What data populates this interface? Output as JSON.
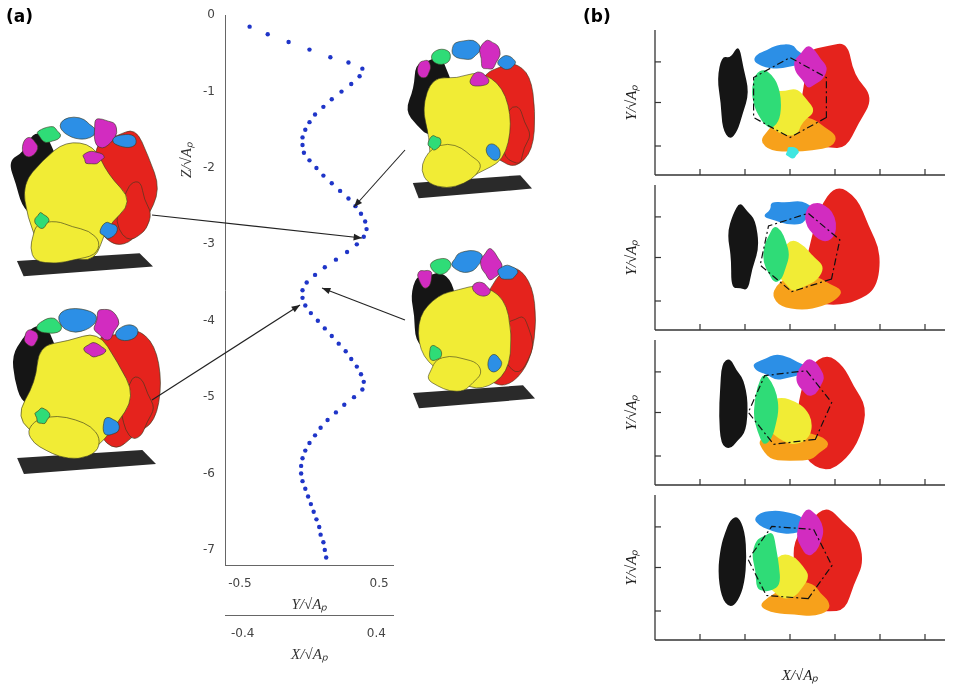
{
  "chart_data": {
    "type": "scatter",
    "x_label": "Y/√Aₚ",
    "y_label": "Z/√Aₚ",
    "x": [
      -0.43,
      -0.3,
      -0.15,
      0.0,
      0.15,
      0.28,
      0.38,
      0.36,
      0.3,
      0.23,
      0.16,
      0.1,
      0.04,
      0.0,
      -0.03,
      -0.05,
      -0.05,
      -0.04,
      0.0,
      0.05,
      0.1,
      0.16,
      0.22,
      0.28,
      0.33,
      0.37,
      0.4,
      0.41,
      0.39,
      0.34,
      0.27,
      0.19,
      0.11,
      0.04,
      -0.02,
      -0.05,
      -0.05,
      -0.03,
      0.01,
      0.06,
      0.11,
      0.16,
      0.21,
      0.26,
      0.3,
      0.34,
      0.37,
      0.39,
      0.38,
      0.32,
      0.25,
      0.19,
      0.13,
      0.08,
      0.04,
      0.0,
      -0.03,
      -0.05,
      -0.06,
      -0.06,
      -0.05,
      -0.03,
      -0.01,
      0.01,
      0.03,
      0.05,
      0.07,
      0.08,
      0.1,
      0.11,
      0.12
    ],
    "values": [
      -0.15,
      -0.25,
      -0.35,
      -0.45,
      -0.55,
      -0.62,
      -0.7,
      -0.8,
      -0.9,
      -1,
      -1.1,
      -1.2,
      -1.3,
      -1.4,
      -1.5,
      -1.6,
      -1.7,
      -1.8,
      -1.9,
      -2,
      -2.1,
      -2.2,
      -2.3,
      -2.4,
      -2.5,
      -2.6,
      -2.7,
      -2.8,
      -2.9,
      -3,
      -3.1,
      -3.2,
      -3.3,
      -3.4,
      -3.5,
      -3.6,
      -3.7,
      -3.8,
      -3.9,
      -4,
      -4.1,
      -4.2,
      -4.3,
      -4.4,
      -4.5,
      -4.6,
      -4.7,
      -4.8,
      -4.9,
      -5,
      -5.1,
      -5.2,
      -5.3,
      -5.4,
      -5.5,
      -5.6,
      -5.7,
      -5.8,
      -5.9,
      -6,
      -6.1,
      -6.2,
      -6.3,
      -6.4,
      -6.5,
      -6.6,
      -6.7,
      -6.8,
      -6.9,
      -7,
      -7.1
    ],
    "color": "#1f35c8",
    "marker": "circle",
    "grid": false,
    "xlim": [
      -0.6,
      0.6
    ],
    "xticks": [
      -0.5,
      0.5
    ],
    "ylim": [
      -7.2,
      0
    ],
    "yticks": [
      0,
      -1,
      -2,
      -3,
      -4,
      -5,
      -6,
      -7
    ],
    "depth_axis": {
      "label": "X/√Aₚ",
      "lim": [
        -0.5,
        0.5
      ],
      "ticks": [
        -0.4,
        0.4
      ]
    }
  },
  "panel_labels": [
    "(a)",
    "(b)"
  ],
  "panel_b": {
    "x_label": "X/√Aₚ",
    "plots": [
      {
        "y_label": "Y/√Aₚ"
      },
      {
        "y_label": "Y/√Aₚ"
      },
      {
        "y_label": "Y/√Aₚ"
      },
      {
        "y_label": "Y/√Aₚ"
      }
    ]
  }
}
